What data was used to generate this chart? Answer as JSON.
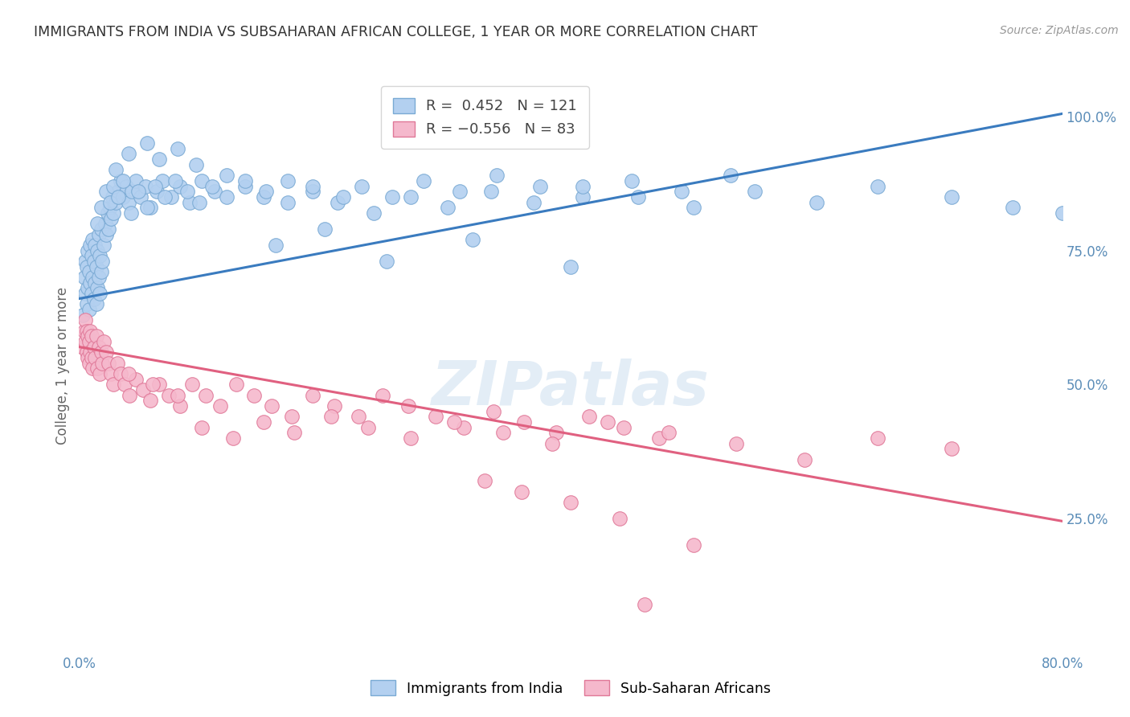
{
  "title": "IMMIGRANTS FROM INDIA VS SUBSAHARAN AFRICAN COLLEGE, 1 YEAR OR MORE CORRELATION CHART",
  "source": "Source: ZipAtlas.com",
  "ylabel": "College, 1 year or more",
  "xmin": 0.0,
  "xmax": 0.8,
  "ymin": 0.0,
  "ymax": 1.07,
  "right_yticks": [
    0.25,
    0.5,
    0.75,
    1.0
  ],
  "right_yticklabels": [
    "25.0%",
    "50.0%",
    "75.0%",
    "100.0%"
  ],
  "xticks": [
    0.0,
    0.1,
    0.2,
    0.3,
    0.4,
    0.5,
    0.6,
    0.7,
    0.8
  ],
  "xticklabels": [
    "0.0%",
    "",
    "",
    "",
    "",
    "",
    "",
    "",
    "80.0%"
  ],
  "india_R": 0.452,
  "india_N": 121,
  "africa_R": -0.556,
  "africa_N": 83,
  "india_color": "#b3d0f0",
  "india_edge": "#7aaad4",
  "africa_color": "#f5b8cc",
  "africa_edge": "#e07898",
  "india_line_color": "#3a7bbf",
  "africa_line_color": "#e06080",
  "legend_india": "Immigrants from India",
  "legend_africa": "Sub-Saharan Africans",
  "title_color": "#333333",
  "axis_color": "#5b8db8",
  "india_trendline_x": [
    0.0,
    0.8
  ],
  "india_trendline_y": [
    0.66,
    1.005
  ],
  "africa_trendline_x": [
    0.0,
    0.8
  ],
  "africa_trendline_y": [
    0.57,
    0.245
  ],
  "background_color": "#ffffff",
  "grid_color": "#dddddd",
  "india_x": [
    0.003,
    0.004,
    0.005,
    0.005,
    0.006,
    0.006,
    0.007,
    0.007,
    0.008,
    0.008,
    0.009,
    0.009,
    0.01,
    0.01,
    0.011,
    0.011,
    0.012,
    0.012,
    0.013,
    0.013,
    0.014,
    0.014,
    0.015,
    0.015,
    0.016,
    0.016,
    0.017,
    0.017,
    0.018,
    0.018,
    0.019,
    0.02,
    0.021,
    0.022,
    0.023,
    0.024,
    0.025,
    0.026,
    0.027,
    0.028,
    0.03,
    0.032,
    0.034,
    0.036,
    0.038,
    0.04,
    0.043,
    0.046,
    0.05,
    0.054,
    0.058,
    0.063,
    0.068,
    0.075,
    0.082,
    0.09,
    0.1,
    0.11,
    0.12,
    0.135,
    0.15,
    0.17,
    0.19,
    0.21,
    0.23,
    0.255,
    0.28,
    0.31,
    0.34,
    0.375,
    0.41,
    0.45,
    0.49,
    0.53,
    0.03,
    0.04,
    0.055,
    0.065,
    0.08,
    0.095,
    0.015,
    0.018,
    0.022,
    0.025,
    0.028,
    0.032,
    0.036,
    0.042,
    0.048,
    0.055,
    0.062,
    0.07,
    0.078,
    0.088,
    0.098,
    0.108,
    0.12,
    0.135,
    0.152,
    0.17,
    0.19,
    0.215,
    0.24,
    0.27,
    0.3,
    0.335,
    0.37,
    0.41,
    0.455,
    0.5,
    0.55,
    0.6,
    0.65,
    0.71,
    0.76,
    0.8,
    0.16,
    0.2,
    0.25,
    0.32,
    0.4
  ],
  "india_y": [
    0.63,
    0.7,
    0.67,
    0.73,
    0.65,
    0.72,
    0.68,
    0.75,
    0.64,
    0.71,
    0.69,
    0.76,
    0.67,
    0.74,
    0.7,
    0.77,
    0.66,
    0.73,
    0.69,
    0.76,
    0.65,
    0.72,
    0.68,
    0.75,
    0.7,
    0.78,
    0.67,
    0.74,
    0.71,
    0.79,
    0.73,
    0.76,
    0.8,
    0.78,
    0.82,
    0.79,
    0.83,
    0.81,
    0.85,
    0.82,
    0.84,
    0.86,
    0.88,
    0.85,
    0.87,
    0.84,
    0.86,
    0.88,
    0.85,
    0.87,
    0.83,
    0.86,
    0.88,
    0.85,
    0.87,
    0.84,
    0.88,
    0.86,
    0.89,
    0.87,
    0.85,
    0.88,
    0.86,
    0.84,
    0.87,
    0.85,
    0.88,
    0.86,
    0.89,
    0.87,
    0.85,
    0.88,
    0.86,
    0.89,
    0.9,
    0.93,
    0.95,
    0.92,
    0.94,
    0.91,
    0.8,
    0.83,
    0.86,
    0.84,
    0.87,
    0.85,
    0.88,
    0.82,
    0.86,
    0.83,
    0.87,
    0.85,
    0.88,
    0.86,
    0.84,
    0.87,
    0.85,
    0.88,
    0.86,
    0.84,
    0.87,
    0.85,
    0.82,
    0.85,
    0.83,
    0.86,
    0.84,
    0.87,
    0.85,
    0.83,
    0.86,
    0.84,
    0.87,
    0.85,
    0.83,
    0.82,
    0.76,
    0.79,
    0.73,
    0.77,
    0.72
  ],
  "africa_x": [
    0.003,
    0.004,
    0.005,
    0.005,
    0.006,
    0.006,
    0.007,
    0.007,
    0.008,
    0.008,
    0.009,
    0.009,
    0.01,
    0.01,
    0.011,
    0.012,
    0.013,
    0.014,
    0.015,
    0.016,
    0.017,
    0.018,
    0.019,
    0.02,
    0.022,
    0.024,
    0.026,
    0.028,
    0.031,
    0.034,
    0.037,
    0.041,
    0.046,
    0.052,
    0.058,
    0.065,
    0.073,
    0.082,
    0.092,
    0.103,
    0.115,
    0.128,
    0.142,
    0.157,
    0.173,
    0.19,
    0.208,
    0.227,
    0.247,
    0.268,
    0.29,
    0.313,
    0.337,
    0.362,
    0.388,
    0.415,
    0.443,
    0.472,
    0.04,
    0.06,
    0.08,
    0.1,
    0.125,
    0.15,
    0.175,
    0.205,
    0.235,
    0.27,
    0.305,
    0.345,
    0.385,
    0.43,
    0.48,
    0.535,
    0.59,
    0.65,
    0.71,
    0.33,
    0.36,
    0.4,
    0.44,
    0.5,
    0.46
  ],
  "africa_y": [
    0.57,
    0.6,
    0.58,
    0.62,
    0.56,
    0.6,
    0.55,
    0.59,
    0.54,
    0.58,
    0.56,
    0.6,
    0.55,
    0.59,
    0.53,
    0.57,
    0.55,
    0.59,
    0.53,
    0.57,
    0.52,
    0.56,
    0.54,
    0.58,
    0.56,
    0.54,
    0.52,
    0.5,
    0.54,
    0.52,
    0.5,
    0.48,
    0.51,
    0.49,
    0.47,
    0.5,
    0.48,
    0.46,
    0.5,
    0.48,
    0.46,
    0.5,
    0.48,
    0.46,
    0.44,
    0.48,
    0.46,
    0.44,
    0.48,
    0.46,
    0.44,
    0.42,
    0.45,
    0.43,
    0.41,
    0.44,
    0.42,
    0.4,
    0.52,
    0.5,
    0.48,
    0.42,
    0.4,
    0.43,
    0.41,
    0.44,
    0.42,
    0.4,
    0.43,
    0.41,
    0.39,
    0.43,
    0.41,
    0.39,
    0.36,
    0.4,
    0.38,
    0.32,
    0.3,
    0.28,
    0.25,
    0.2,
    0.09
  ]
}
